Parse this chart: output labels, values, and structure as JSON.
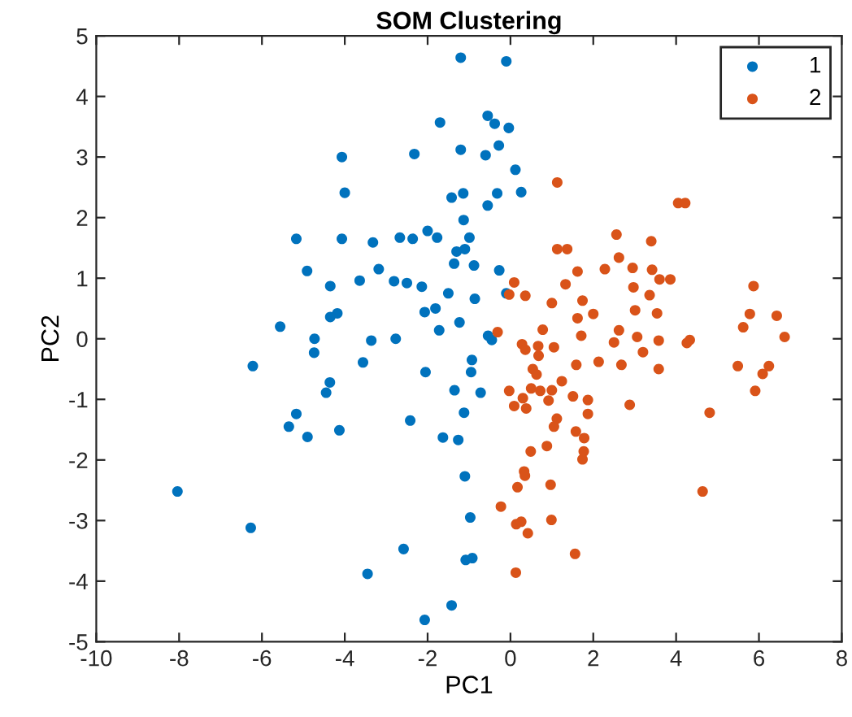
{
  "chart_data": {
    "type": "scatter",
    "title": "SOM Clustering",
    "xlabel": "PC1",
    "ylabel": "PC2",
    "xlim": [
      -10,
      8
    ],
    "xticks": [
      -10,
      -8,
      -6,
      -4,
      -2,
      0,
      2,
      4,
      6,
      8
    ],
    "ylim": [
      -5,
      5
    ],
    "yticks": [
      -5,
      -4,
      -3,
      -2,
      -1,
      0,
      1,
      2,
      3,
      4,
      5
    ],
    "grid": false,
    "legend": "top right",
    "marker": "circle",
    "series": [
      {
        "name": "1",
        "color": "#0072bd",
        "x": [
          -4.07,
          -4.0,
          -5.17,
          -4.07,
          -3.32,
          -4.91,
          -4.35,
          -3.64,
          -3.18,
          -4.18,
          -4.35,
          -5.56,
          -4.73,
          -3.36,
          -4.74,
          -6.22,
          -3.56,
          -4.36,
          -4.45,
          -5.17,
          -5.35,
          -4.9,
          -4.13,
          -8.04,
          -6.27,
          -3.45,
          -1.2,
          -0.1,
          -0.55,
          -1.7,
          -0.38,
          -0.04,
          -0.28,
          -1.2,
          -2.32,
          -0.6,
          0.12,
          0.26,
          -0.32,
          -1.14,
          -1.42,
          -0.55,
          -1.13,
          -2.0,
          -0.99,
          -2.67,
          -2.36,
          -1.77,
          -1.3,
          -1.1,
          -1.36,
          -0.88,
          -0.27,
          -2.81,
          -2.5,
          -2.14,
          -1.5,
          -0.1,
          -0.86,
          -2.07,
          -1.81,
          -1.72,
          -1.23,
          -0.54,
          -2.77,
          -0.45,
          -2.05,
          -0.93,
          -0.95,
          -1.35,
          -0.72,
          -1.12,
          -2.42,
          -1.63,
          -1.26,
          -1.1,
          -0.97,
          -2.58,
          -1.08,
          -0.92,
          -1.42,
          -2.07
        ],
        "values": [
          3.0,
          2.41,
          1.65,
          1.65,
          1.59,
          1.12,
          0.87,
          0.96,
          1.15,
          0.42,
          0.36,
          0.2,
          0.0,
          -0.03,
          -0.23,
          -0.45,
          -0.39,
          -0.72,
          -0.89,
          -1.24,
          -1.45,
          -1.62,
          -1.51,
          -2.52,
          -3.12,
          -3.88,
          4.64,
          4.58,
          3.68,
          3.57,
          3.55,
          3.48,
          3.19,
          3.12,
          3.05,
          3.03,
          2.79,
          2.42,
          2.4,
          2.4,
          2.33,
          2.2,
          1.96,
          1.78,
          1.67,
          1.67,
          1.65,
          1.67,
          1.44,
          1.48,
          1.24,
          1.21,
          1.13,
          0.95,
          0.92,
          0.86,
          0.75,
          0.75,
          0.66,
          0.44,
          0.5,
          0.14,
          0.27,
          0.05,
          0.0,
          -0.02,
          -0.55,
          -0.35,
          -0.55,
          -0.85,
          -0.89,
          -1.22,
          -1.35,
          -1.63,
          -1.67,
          -2.27,
          -2.95,
          -3.47,
          -3.65,
          -3.62,
          -4.4,
          -4.64
        ]
      },
      {
        "name": "2",
        "color": "#d95319",
        "x": [
          1.13,
          1.13,
          1.37,
          1.62,
          1.33,
          0.09,
          -0.03,
          0.36,
          1.0,
          1.74,
          1.62,
          2.0,
          -0.31,
          0.78,
          1.71,
          0.28,
          0.36,
          0.67,
          1.05,
          0.68,
          1.59,
          0.54,
          0.63,
          1.24,
          -0.03,
          0.5,
          0.72,
          1.0,
          0.92,
          0.3,
          0.09,
          0.38,
          1.51,
          1.87,
          1.87,
          1.12,
          1.05,
          1.58,
          1.78,
          0.49,
          0.88,
          1.77,
          1.74,
          0.33,
          0.35,
          0.17,
          0.97,
          -0.23,
          0.14,
          0.26,
          0.42,
          0.99,
          1.56,
          0.13,
          4.05,
          4.22,
          2.56,
          3.4,
          2.62,
          2.28,
          2.95,
          3.42,
          3.6,
          3.86,
          2.97,
          3.36,
          3.01,
          3.54,
          5.87,
          5.78,
          6.43,
          5.62,
          2.62,
          6.62,
          2.5,
          3.06,
          3.58,
          4.33,
          4.26,
          3.2,
          2.13,
          2.68,
          3.58,
          5.49,
          6.24,
          6.09,
          5.91,
          2.88,
          4.81,
          4.64
        ],
        "values": [
          2.58,
          1.48,
          1.48,
          1.11,
          0.9,
          0.93,
          0.73,
          0.71,
          0.59,
          0.63,
          0.34,
          0.41,
          0.11,
          0.15,
          0.05,
          -0.09,
          -0.18,
          -0.12,
          -0.14,
          -0.28,
          -0.43,
          -0.5,
          -0.59,
          -0.7,
          -0.86,
          -0.82,
          -0.86,
          -0.85,
          -1.02,
          -0.98,
          -1.11,
          -1.15,
          -0.95,
          -1.01,
          -1.24,
          -1.32,
          -1.45,
          -1.53,
          -1.64,
          -1.86,
          -1.77,
          -1.86,
          -1.99,
          -2.19,
          -2.26,
          -2.45,
          -2.41,
          -2.77,
          -3.06,
          -3.02,
          -3.21,
          -2.99,
          -3.55,
          -3.86,
          2.24,
          2.24,
          1.72,
          1.61,
          1.34,
          1.15,
          1.17,
          1.14,
          0.98,
          0.98,
          0.85,
          0.72,
          0.47,
          0.42,
          0.87,
          0.41,
          0.38,
          0.19,
          0.14,
          0.03,
          -0.06,
          0.03,
          -0.03,
          -0.02,
          -0.07,
          -0.22,
          -0.38,
          -0.43,
          -0.5,
          -0.45,
          -0.45,
          -0.58,
          -0.86,
          -1.09,
          -1.22,
          -2.52
        ]
      }
    ]
  }
}
